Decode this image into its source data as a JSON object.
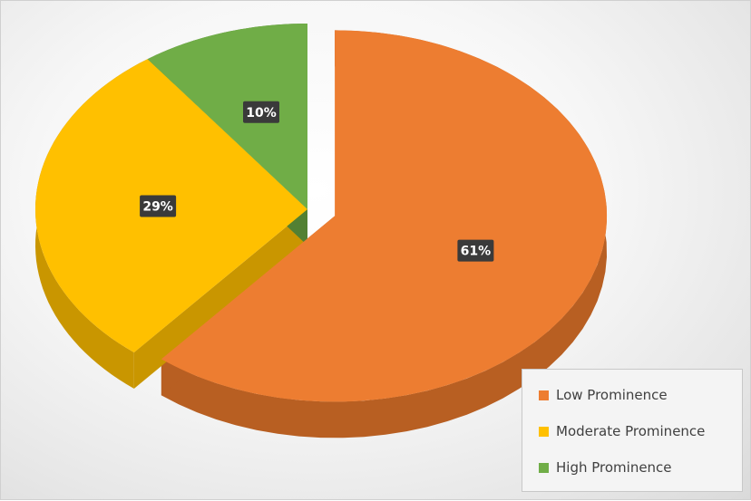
{
  "chart_data": {
    "type": "pie",
    "title": "",
    "legend_position": "bottom-right",
    "slices": [
      {
        "label": "Low Prominence",
        "value": 61,
        "value_label": "61%",
        "color": "#ED7D31",
        "side_color": "#B85F22",
        "exploded": true
      },
      {
        "label": "Moderate Prominence",
        "value": 29,
        "value_label": "29%",
        "color": "#FFC000",
        "side_color": "#C99600",
        "exploded": false
      },
      {
        "label": "High Prominence",
        "value": 10,
        "value_label": "10%",
        "color": "#70AD47",
        "side_color": "#528033",
        "exploded": false
      }
    ]
  }
}
